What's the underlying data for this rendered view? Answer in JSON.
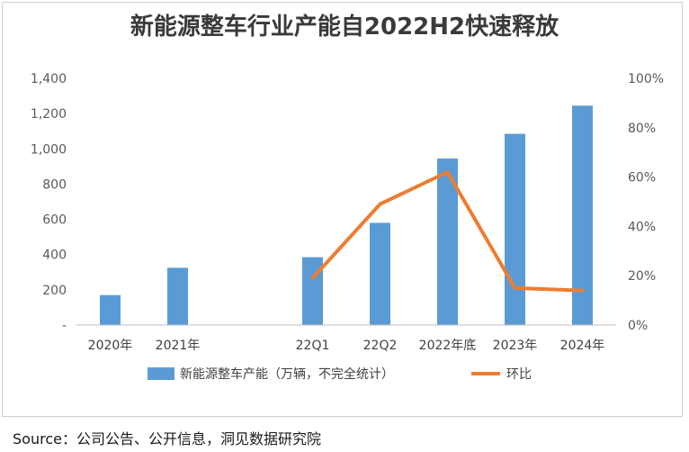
{
  "chart_data": {
    "type": "bar",
    "title": "新能源整车行业产能自2022H2快速释放",
    "categories": [
      "2020年",
      "2021年",
      "",
      "22Q1",
      "22Q2",
      "2022年底",
      "2023年",
      "2024年"
    ],
    "series": [
      {
        "name": "新能源整车产能（万辆，不完全统计）",
        "type": "bar",
        "axis": "left",
        "color": "#5b9bd5",
        "values": [
          170,
          325,
          null,
          385,
          580,
          945,
          1085,
          1245
        ]
      },
      {
        "name": "环比",
        "type": "line",
        "axis": "right",
        "color": "#ed7d31",
        "values": [
          null,
          null,
          null,
          19,
          49,
          62,
          15,
          14
        ]
      }
    ],
    "ylim": [
      0,
      1400
    ],
    "y_ticks": [
      "-",
      "200",
      "400",
      "600",
      "800",
      "1,000",
      "1,200",
      "1,400"
    ],
    "y2lim": [
      0,
      100
    ],
    "y2_ticks": [
      "0%",
      "20%",
      "40%",
      "60%",
      "80%",
      "100%"
    ],
    "grid": false,
    "legend": "bottom"
  },
  "source": "Source：公司公告、公开信息，洞见数据研究院"
}
